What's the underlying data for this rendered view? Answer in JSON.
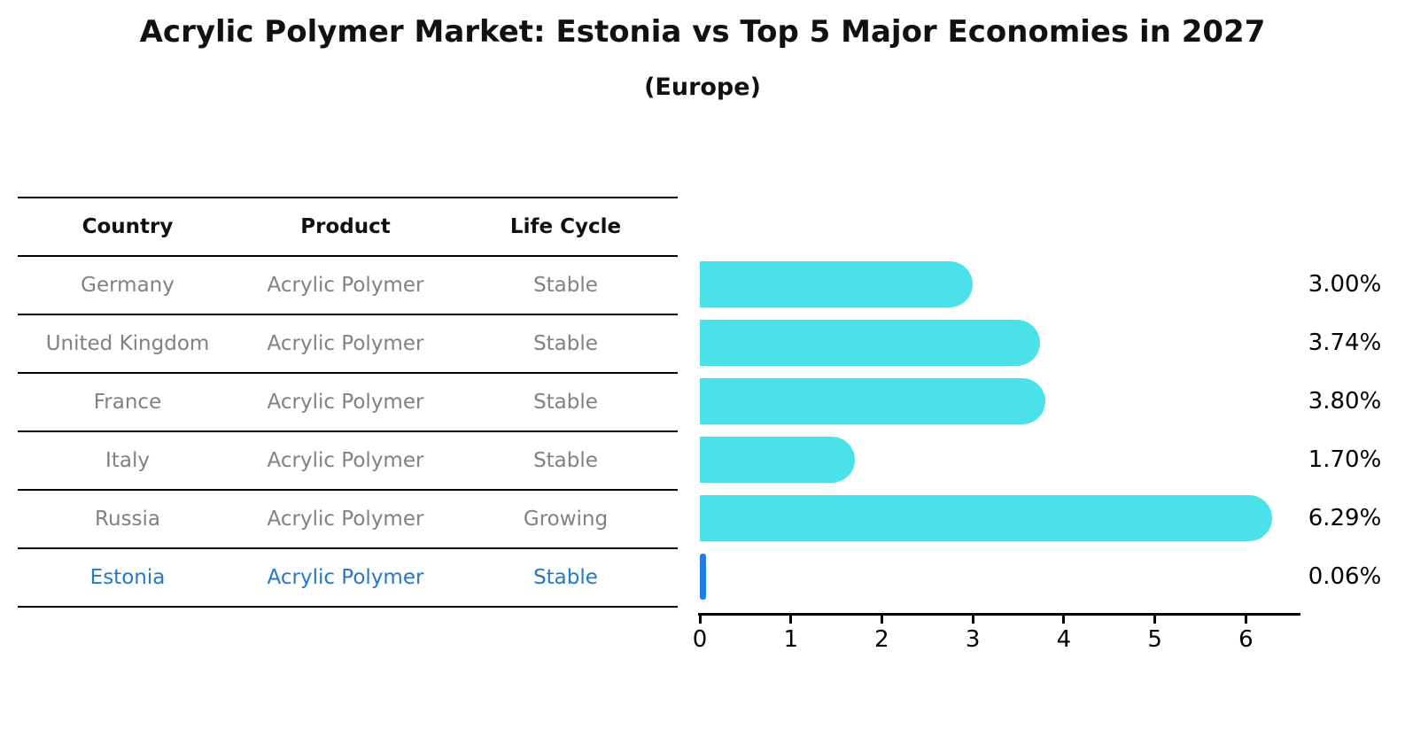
{
  "figure": {
    "title": "Acrylic Polymer Market: Estonia vs Top 5 Major Economies in 2027",
    "subtitle": "(Europe)"
  },
  "table": {
    "headers": [
      "Country",
      "Product",
      "Life Cycle"
    ],
    "rows": [
      {
        "country": "Germany",
        "product": "Acrylic Polymer",
        "life_cycle": "Stable",
        "highlight": false
      },
      {
        "country": "United Kingdom",
        "product": "Acrylic Polymer",
        "life_cycle": "Stable",
        "highlight": false
      },
      {
        "country": "France",
        "product": "Acrylic Polymer",
        "life_cycle": "Stable",
        "highlight": false
      },
      {
        "country": "Italy",
        "product": "Acrylic Polymer",
        "life_cycle": "Stable",
        "highlight": false
      },
      {
        "country": "Russia",
        "product": "Acrylic Polymer",
        "life_cycle": "Growing",
        "highlight": false
      },
      {
        "country": "Estonia",
        "product": "Acrylic Polymer",
        "life_cycle": "Stable",
        "highlight": true
      }
    ]
  },
  "chart_data": {
    "type": "bar",
    "orientation": "horizontal",
    "title": "Acrylic Polymer Market: Estonia vs Top 5 Major Economies in 2027",
    "subtitle": "(Europe)",
    "categories": [
      "Germany",
      "United Kingdom",
      "France",
      "Italy",
      "Russia",
      "Estonia"
    ],
    "values": [
      3.0,
      3.74,
      3.8,
      1.7,
      6.29,
      0.06
    ],
    "value_labels": [
      "3.00%",
      "3.74%",
      "3.80%",
      "1.70%",
      "6.29%",
      "0.06%"
    ],
    "xlabel": "",
    "ylabel": "",
    "xlim": [
      0,
      6.6
    ],
    "x_ticks": [
      0,
      1,
      2,
      3,
      4,
      5,
      6
    ],
    "grid": false,
    "legend": false,
    "bar_color": "#4ae1e8",
    "highlight_bar_color": "#1f7fe0",
    "highlight_text_color": "#2478c8",
    "text_color": "#818181"
  }
}
